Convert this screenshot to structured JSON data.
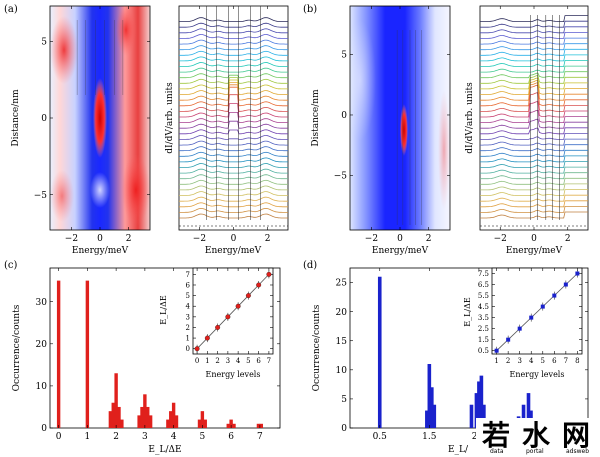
{
  "panels": {
    "a": "(a)",
    "b": "(b)",
    "c": "(c)",
    "d": "(d)"
  },
  "labels": {
    "distance": "Distance/nm",
    "energy_mev": "Energy/meV",
    "didv": "dI/dV/arb. units",
    "occurrence": "Occurrence/counts",
    "el_over_de": "E_L/ΔE",
    "el_over_de_cut": "E_L/",
    "energy_levels": "Energy levels"
  },
  "watermark": {
    "chars": [
      "若",
      "水",
      "网"
    ],
    "sub": [
      "data",
      "portal",
      "adsweb"
    ]
  },
  "colors": {
    "red": "#e0201c",
    "blue": "#1a22cc",
    "map_red": "#e31a1c",
    "map_blue": "#1f2bff"
  },
  "chart_data": [
    {
      "id": "a-map",
      "type": "heatmap",
      "xlabel": "Energy/meV",
      "ylabel": "Distance/nm",
      "x_ticks": [
        -2,
        0,
        2
      ],
      "y_ticks": [
        -5,
        0,
        5
      ],
      "xlim": [
        -3.5,
        3.5
      ],
      "ylim": [
        -7.3,
        7.3
      ]
    },
    {
      "id": "a-spectra",
      "type": "line",
      "xlabel": "Energy/meV",
      "ylabel": "dI/dV/arb. units",
      "x_ticks": [
        -2,
        0,
        2
      ],
      "xlim": [
        -3.2,
        3.2
      ],
      "n_curves": 36
    },
    {
      "id": "b-map",
      "type": "heatmap",
      "xlabel": "Energy/meV",
      "ylabel": "Distance/nm",
      "x_ticks": [
        -2,
        0,
        2
      ],
      "y_ticks": [
        -5,
        0,
        5
      ],
      "xlim": [
        -3.5,
        3.5
      ],
      "ylim": [
        -9.5,
        9.0
      ]
    },
    {
      "id": "b-spectra",
      "type": "line",
      "xlabel": "Energy/meV",
      "ylabel": "dI/dV/arb. units",
      "x_ticks": [
        -2,
        0,
        2
      ],
      "xlim": [
        -3.2,
        3.2
      ],
      "n_curves": 36
    },
    {
      "id": "c-hist",
      "type": "bar",
      "xlabel": "E_L/ΔE",
      "ylabel": "Occurrence/counts",
      "x_ticks": [
        0,
        1,
        2,
        3,
        4,
        5,
        6,
        7
      ],
      "y_ticks": [
        0,
        10,
        20,
        30
      ],
      "xlim": [
        -0.3,
        7.7
      ],
      "ylim": [
        0,
        38
      ],
      "bars": [
        [
          0,
          35
        ],
        [
          1,
          35
        ],
        [
          1.8,
          4
        ],
        [
          1.9,
          6
        ],
        [
          2.0,
          13
        ],
        [
          2.1,
          5
        ],
        [
          2.2,
          2
        ],
        [
          2.8,
          3
        ],
        [
          2.9,
          5
        ],
        [
          3.0,
          8
        ],
        [
          3.1,
          5
        ],
        [
          3.2,
          3
        ],
        [
          3.8,
          2
        ],
        [
          3.9,
          4
        ],
        [
          4.0,
          6
        ],
        [
          4.1,
          3
        ],
        [
          4.9,
          2
        ],
        [
          5.0,
          4
        ],
        [
          5.1,
          2
        ],
        [
          5.9,
          1
        ],
        [
          6.0,
          2
        ],
        [
          6.1,
          1
        ],
        [
          6.95,
          1
        ],
        [
          7.05,
          1
        ]
      ]
    },
    {
      "id": "c-inset",
      "type": "scatter",
      "xlabel": "Energy levels",
      "ylabel": "E_L/ΔE",
      "x_ticks": [
        0,
        1,
        2,
        3,
        4,
        5,
        6,
        7
      ],
      "y_ticks": [
        0,
        1,
        2,
        3,
        4,
        5,
        6,
        7
      ],
      "xlim": [
        -0.4,
        7.4
      ],
      "ylim": [
        -0.5,
        7.6
      ],
      "x": [
        0,
        1,
        2,
        3,
        4,
        5,
        6,
        7
      ],
      "y": [
        0,
        1,
        2,
        3,
        4,
        5,
        6,
        7
      ]
    },
    {
      "id": "d-hist",
      "type": "bar",
      "xlabel": "E_L/",
      "ylabel": "Occurrence/counts",
      "x_ticks": [
        0.5,
        1.5,
        2.5,
        3.5
      ],
      "y_ticks": [
        0,
        5,
        10,
        15,
        20,
        25
      ],
      "xlim": [
        -0.1,
        4.7
      ],
      "ylim": [
        0,
        27.5
      ],
      "bars": [
        [
          0.5,
          26
        ],
        [
          1.45,
          3
        ],
        [
          1.5,
          11
        ],
        [
          1.55,
          7
        ],
        [
          1.6,
          4
        ],
        [
          2.35,
          4
        ],
        [
          2.45,
          6
        ],
        [
          2.5,
          8
        ],
        [
          2.55,
          9
        ],
        [
          2.6,
          4
        ],
        [
          3.3,
          2
        ],
        [
          3.4,
          4
        ],
        [
          3.5,
          6
        ],
        [
          3.55,
          3
        ]
      ]
    },
    {
      "id": "d-inset",
      "type": "scatter",
      "xlabel": "Energy levels",
      "ylabel": "E_L/ΔE",
      "x_ticks": [
        1,
        2,
        3,
        4,
        5,
        6,
        7,
        8
      ],
      "y_ticks": [
        0.5,
        1.5,
        2.5,
        3.5,
        4.5,
        5.5,
        6.5,
        7.5
      ],
      "xlim": [
        0.6,
        8.4
      ],
      "ylim": [
        0.2,
        8.0
      ],
      "x": [
        1,
        2,
        3,
        4,
        5,
        6,
        7,
        8
      ],
      "y": [
        0.5,
        1.5,
        2.5,
        3.5,
        4.5,
        5.5,
        6.5,
        7.5
      ]
    }
  ]
}
